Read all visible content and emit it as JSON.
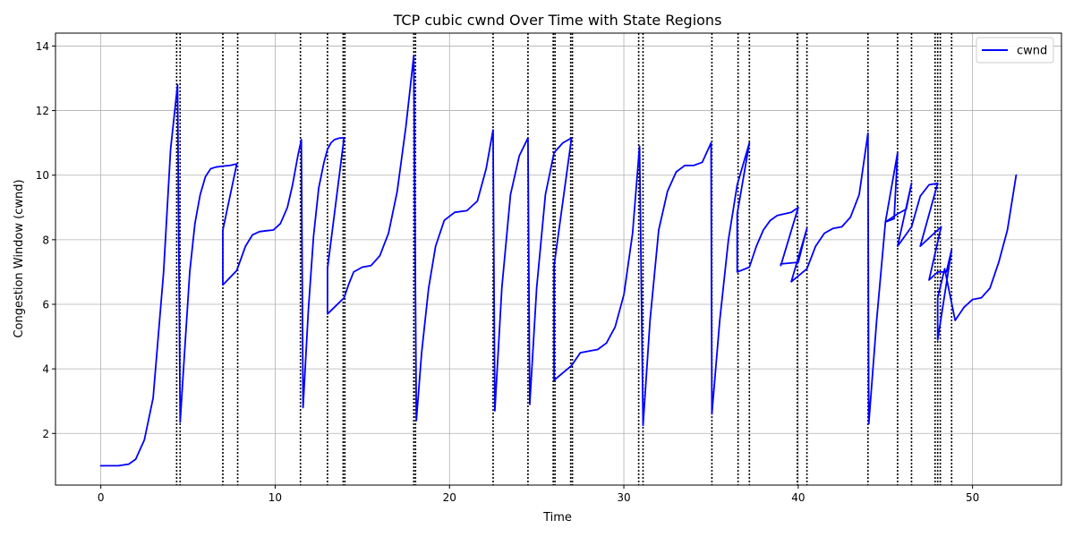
{
  "chart_data": {
    "type": "line",
    "title": "TCP cubic cwnd Over Time with State Regions",
    "xlabel": "Time",
    "ylabel": "Congestion Window (cwnd)",
    "xlim": [
      -2.6,
      55.1
    ],
    "ylim": [
      0.4,
      14.4
    ],
    "xticks": [
      0,
      10,
      20,
      30,
      40,
      50
    ],
    "yticks": [
      2,
      4,
      6,
      8,
      10,
      12,
      14
    ],
    "grid": true,
    "legend": {
      "placement": "top-right",
      "entries": [
        "cwnd"
      ]
    },
    "series": [
      {
        "name": "cwnd",
        "color": "#0000ff",
        "x": [
          0,
          1.0,
          1.6,
          2.0,
          2.5,
          3.0,
          3.6,
          4.0,
          4.4,
          4.55,
          4.8,
          5.1,
          5.4,
          5.7,
          6.0,
          6.3,
          6.6,
          7.0,
          7.4,
          7.8,
          7.0,
          7.0,
          7.8,
          8.3,
          8.7,
          9.1,
          9.5,
          9.9,
          10.3,
          10.7,
          11.0,
          11.3,
          11.5,
          11.6,
          11.9,
          12.2,
          12.5,
          12.8,
          13.0,
          13.2,
          13.4,
          13.7,
          13.95,
          13.0,
          13.0,
          13.95,
          14.2,
          14.5,
          15.0,
          15.5,
          16.0,
          16.5,
          17.0,
          17.5,
          17.95,
          18.1,
          18.4,
          18.8,
          19.2,
          19.7,
          20.3,
          21.0,
          21.6,
          22.1,
          22.5,
          22.6,
          23.0,
          23.5,
          24.0,
          24.5,
          24.6,
          25.0,
          25.5,
          26.0,
          26.5,
          27.0,
          26.0,
          26.0,
          27.0,
          27.5,
          28.0,
          28.5,
          29.0,
          29.5,
          30.0,
          30.5,
          30.9,
          31.1,
          31.5,
          32.0,
          32.5,
          33.0,
          33.5,
          34.0,
          34.5,
          35.0,
          35.05,
          35.5,
          36.0,
          36.5,
          37.2,
          36.5,
          36.5,
          37.2,
          37.6,
          38.0,
          38.4,
          38.8,
          39.2,
          39.6,
          40.0,
          39.0,
          39.0,
          40.0,
          40.5,
          39.6,
          40.5,
          41.0,
          41.5,
          42.0,
          42.5,
          43.0,
          43.5,
          44.0,
          44.05,
          44.5,
          45.0,
          45.5,
          45.7,
          45.0,
          45.7,
          46.2,
          46.5,
          45.7,
          46.5,
          47.0,
          47.5,
          48.0,
          47.0,
          48.0,
          48.2,
          47.5,
          48.0,
          48.5,
          48.8,
          48.0,
          48.0,
          48.4,
          49.0,
          49.5,
          50.0,
          50.5,
          51.0,
          51.5,
          52.0,
          52.5
        ],
        "y": [
          1.0,
          1.0,
          1.05,
          1.2,
          1.8,
          3.1,
          7.0,
          10.8,
          12.8,
          2.35,
          4.5,
          7.0,
          8.5,
          9.4,
          9.95,
          10.2,
          10.25,
          10.28,
          10.3,
          10.35,
          8.3,
          6.6,
          7.05,
          7.8,
          8.15,
          8.25,
          8.28,
          8.3,
          8.5,
          9.0,
          9.7,
          10.6,
          11.1,
          2.8,
          5.8,
          8.1,
          9.6,
          10.4,
          10.8,
          11.0,
          11.1,
          11.15,
          11.15,
          7.1,
          5.7,
          6.2,
          6.6,
          7.0,
          7.15,
          7.2,
          7.5,
          8.2,
          9.5,
          11.5,
          13.7,
          2.4,
          4.5,
          6.5,
          7.8,
          8.6,
          8.85,
          8.9,
          9.2,
          10.2,
          11.4,
          2.7,
          6.5,
          9.4,
          10.6,
          11.15,
          2.9,
          6.5,
          9.4,
          10.7,
          11.0,
          11.15,
          7.2,
          3.65,
          4.1,
          4.5,
          4.55,
          4.6,
          4.8,
          5.3,
          6.3,
          8.2,
          10.9,
          2.25,
          5.5,
          8.3,
          9.5,
          10.1,
          10.3,
          10.3,
          10.4,
          11.0,
          2.6,
          5.5,
          8.0,
          9.7,
          11.0,
          8.8,
          7.0,
          7.15,
          7.8,
          8.3,
          8.6,
          8.75,
          8.8,
          8.85,
          9.0,
          7.2,
          7.25,
          7.3,
          8.35,
          6.7,
          7.1,
          7.8,
          8.2,
          8.35,
          8.4,
          8.7,
          9.4,
          11.3,
          2.3,
          5.5,
          8.55,
          8.65,
          10.7,
          8.55,
          8.8,
          8.95,
          9.75,
          7.8,
          8.4,
          9.35,
          9.7,
          9.75,
          7.8,
          8.3,
          8.4,
          6.75,
          7.0,
          7.0,
          7.7,
          4.9,
          6.2,
          7.1,
          5.5,
          5.9,
          6.15,
          6.2,
          6.5,
          7.3,
          8.3,
          10.0
        ]
      }
    ],
    "state_changes": [
      4.35,
      4.55,
      7.0,
      7.85,
      11.45,
      13.0,
      13.9,
      14.0,
      17.95,
      18.05,
      22.5,
      24.5,
      25.95,
      26.05,
      26.95,
      27.05,
      30.85,
      31.1,
      35.05,
      36.55,
      37.2,
      39.95,
      40.5,
      44.0,
      45.7,
      46.5,
      47.85,
      48.0,
      48.15,
      48.8
    ]
  }
}
